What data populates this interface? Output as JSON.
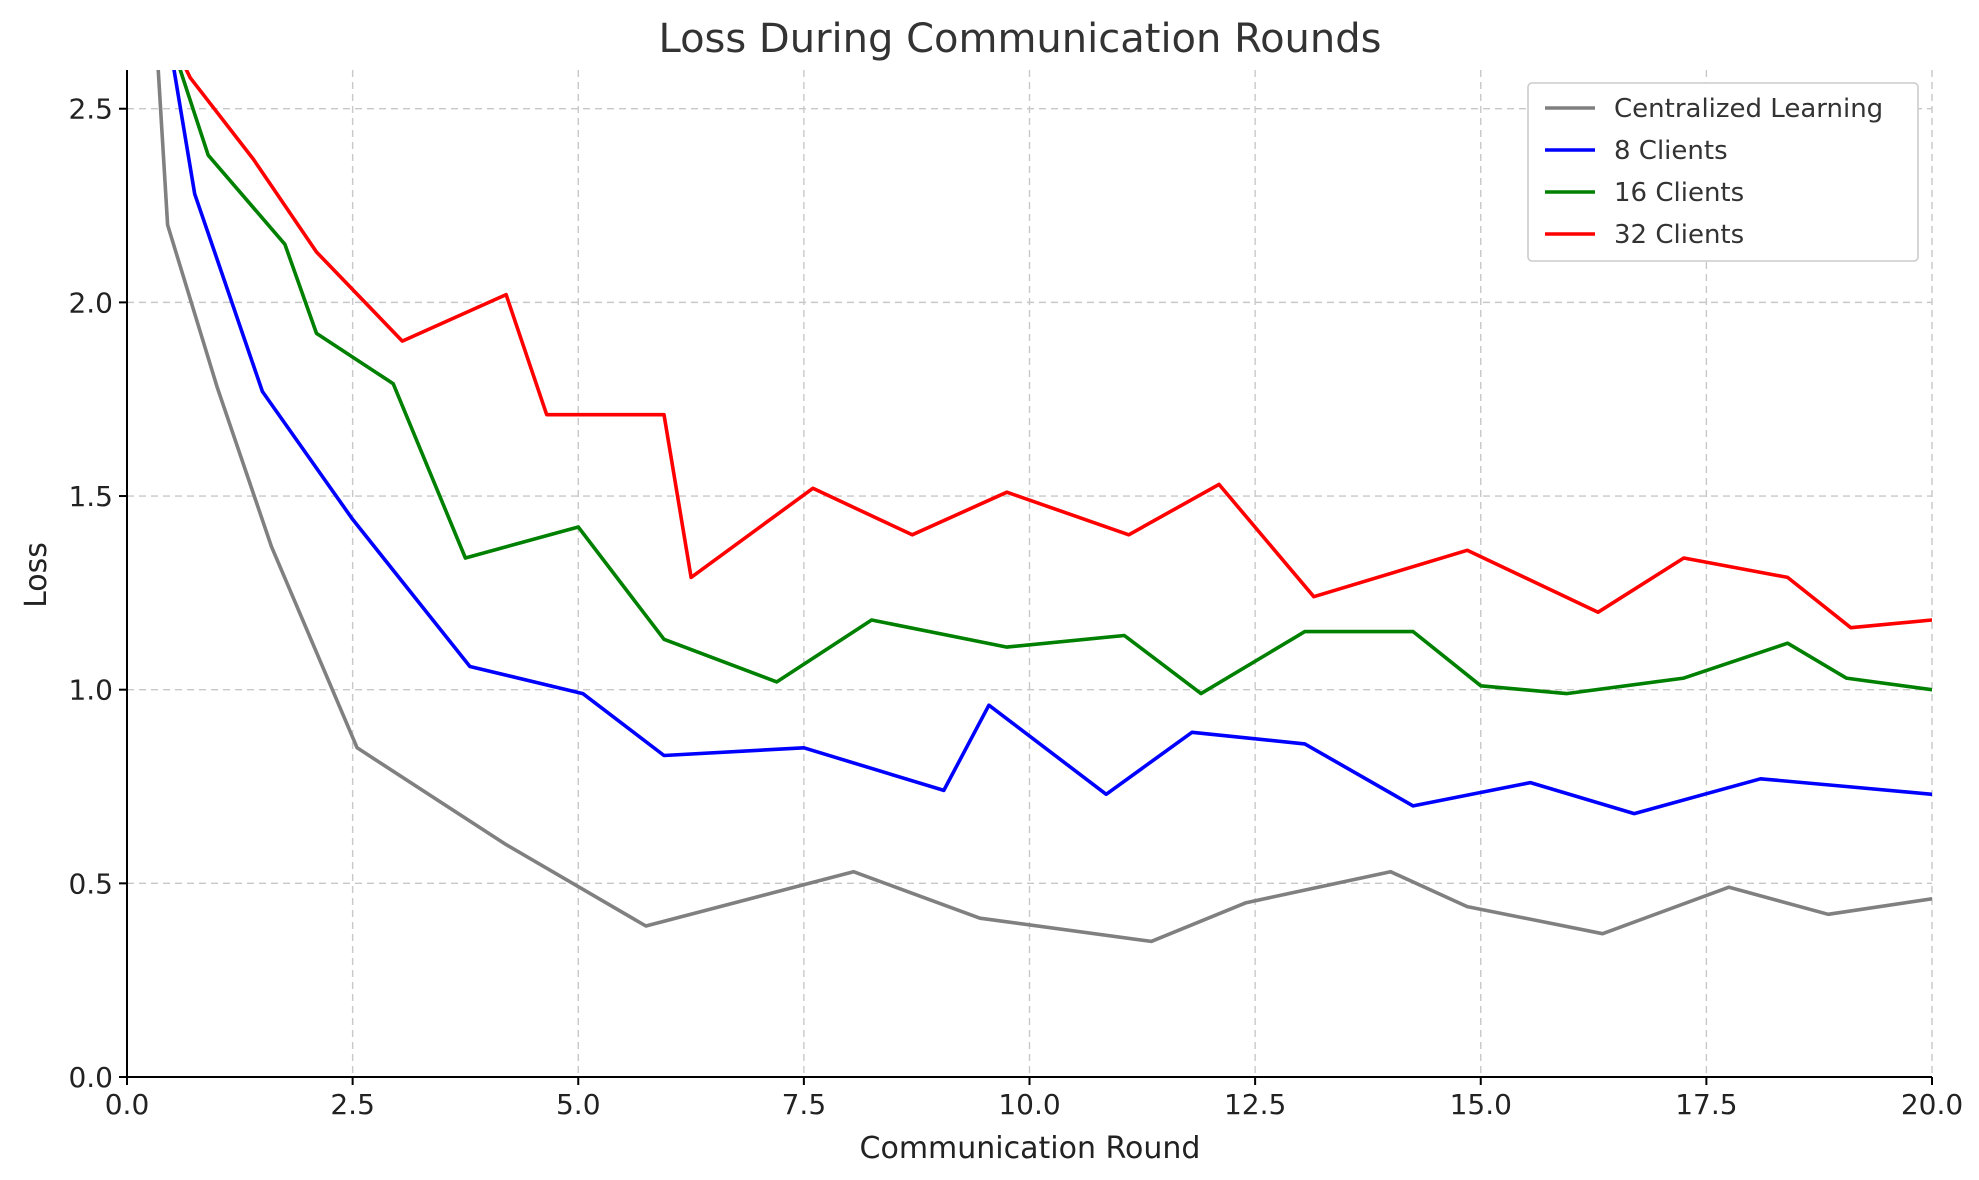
{
  "chart_data": {
    "type": "line",
    "title": "Loss During Communication Rounds",
    "xlabel": "Communication Round",
    "ylabel": "Loss",
    "xlim": [
      0,
      20
    ],
    "ylim": [
      0,
      2.6
    ],
    "xticks": [
      0,
      2.5,
      5,
      7.5,
      10,
      12.5,
      15,
      17.5,
      20
    ],
    "xtick_labels": [
      "0.0",
      "2.5",
      "5.0",
      "7.5",
      "10.0",
      "12.5",
      "15.0",
      "17.5",
      "20.0"
    ],
    "yticks": [
      0,
      0.5,
      1,
      1.5,
      2,
      2.5
    ],
    "ytick_labels": [
      "0.0",
      "0.5",
      "1.0",
      "1.5",
      "2.0",
      "2.5"
    ],
    "grid": true,
    "legend_position": "top-right",
    "series": [
      {
        "name": "Centralized Learning",
        "color": "#808080",
        "x": [
          0.32,
          0.45,
          1.0,
          1.6,
          2.55,
          4.2,
          5.75,
          8.05,
          9.45,
          11.35,
          12.4,
          14.0,
          14.85,
          16.35,
          17.75,
          18.85,
          20.0
        ],
        "y": [
          2.7,
          2.2,
          1.78,
          1.37,
          0.85,
          0.6,
          0.39,
          0.53,
          0.41,
          0.35,
          0.45,
          0.53,
          0.44,
          0.37,
          0.49,
          0.42,
          0.46
        ]
      },
      {
        "name": "8 Clients",
        "color": "#0000ff",
        "x": [
          0.45,
          0.75,
          1.5,
          2.5,
          3.8,
          5.05,
          5.95,
          7.5,
          9.05,
          9.55,
          10.85,
          11.8,
          13.05,
          14.25,
          15.55,
          16.7,
          18.1,
          19.05,
          20.0
        ],
        "y": [
          2.7,
          2.28,
          1.77,
          1.44,
          1.06,
          0.99,
          0.83,
          0.85,
          0.74,
          0.96,
          0.73,
          0.89,
          0.86,
          0.7,
          0.76,
          0.68,
          0.77,
          0.75,
          0.73
        ]
      },
      {
        "name": "16 Clients",
        "color": "#008000",
        "x": [
          0.45,
          0.9,
          1.75,
          2.1,
          2.95,
          3.75,
          5.0,
          5.95,
          7.2,
          8.25,
          9.75,
          11.05,
          11.9,
          13.05,
          14.25,
          15.0,
          15.95,
          17.25,
          18.4,
          19.05,
          20.0
        ],
        "y": [
          2.7,
          2.38,
          2.15,
          1.92,
          1.79,
          1.34,
          1.42,
          1.13,
          1.02,
          1.18,
          1.11,
          1.14,
          0.99,
          1.15,
          1.15,
          1.01,
          0.99,
          1.03,
          1.12,
          1.03,
          1.0
        ]
      },
      {
        "name": "32 Clients",
        "color": "#ff0000",
        "x": [
          0.45,
          0.7,
          1.4,
          2.1,
          3.05,
          4.2,
          4.65,
          5.95,
          6.25,
          7.6,
          8.7,
          9.75,
          11.1,
          12.1,
          13.15,
          14.85,
          16.3,
          17.25,
          18.4,
          19.1,
          20.0
        ],
        "y": [
          2.7,
          2.58,
          2.37,
          2.13,
          1.9,
          2.02,
          1.71,
          1.71,
          1.29,
          1.52,
          1.4,
          1.51,
          1.4,
          1.53,
          1.24,
          1.36,
          1.2,
          1.34,
          1.29,
          1.16,
          1.18
        ]
      }
    ]
  }
}
